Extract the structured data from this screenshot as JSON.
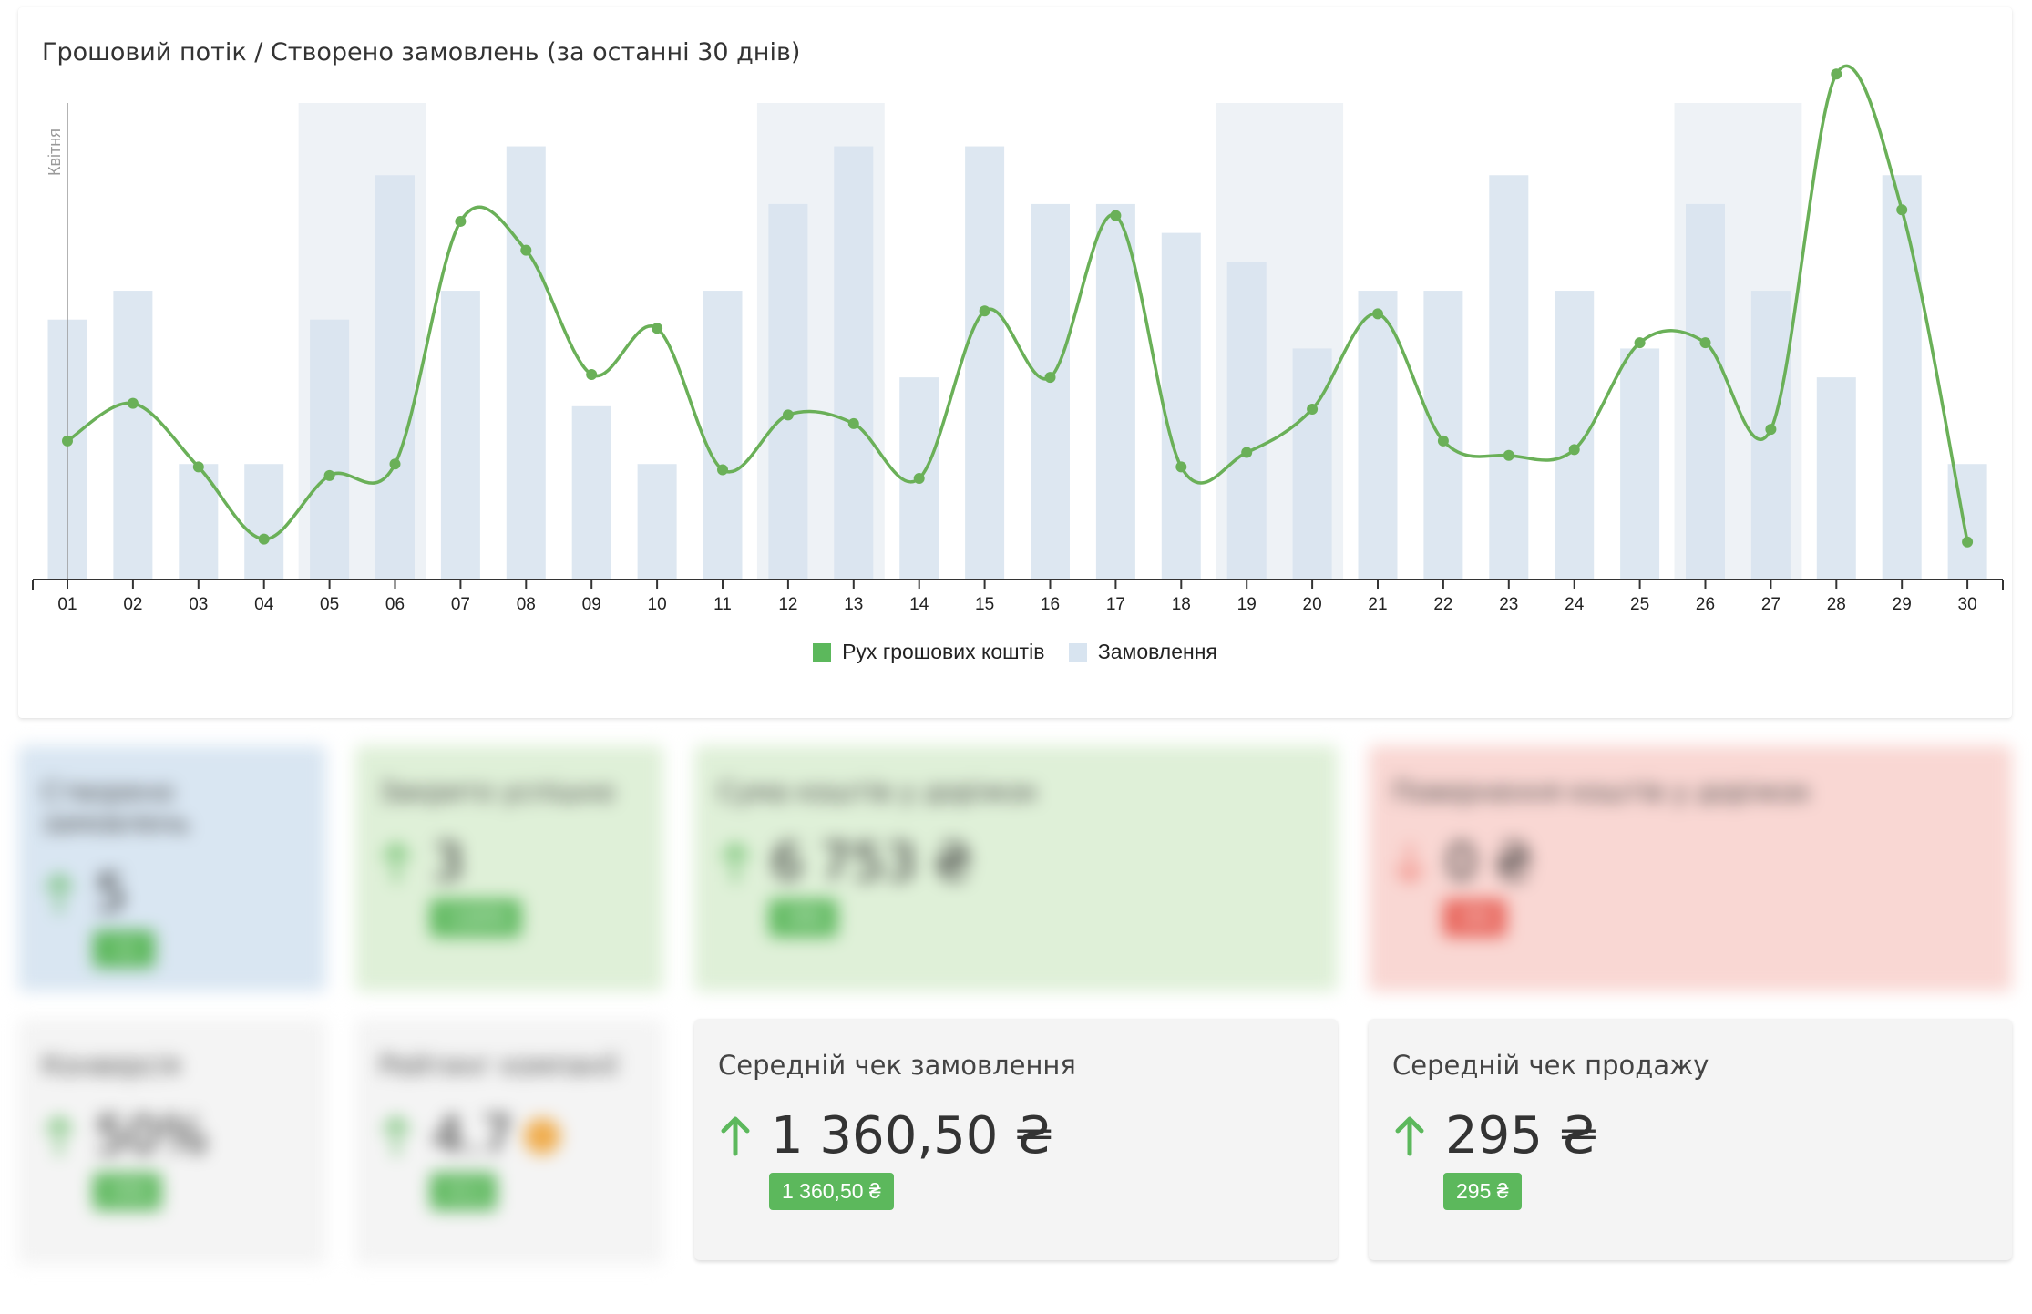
{
  "chart_panel": {
    "title": "Грошовий потік / Створено замовлень (за останні 30 днів)",
    "month_label": "Квітня",
    "legend": [
      {
        "label": "Рух грошових коштів",
        "color": "#5cb85c"
      },
      {
        "label": "Замовлення",
        "color": "#d8e4f0"
      }
    ]
  },
  "chart_data": {
    "type": "bar",
    "categories": [
      "01",
      "02",
      "03",
      "04",
      "05",
      "06",
      "07",
      "08",
      "09",
      "10",
      "11",
      "12",
      "13",
      "14",
      "15",
      "16",
      "17",
      "18",
      "19",
      "20",
      "21",
      "22",
      "23",
      "24",
      "25",
      "26",
      "27",
      "28",
      "29",
      "30"
    ],
    "series": [
      {
        "name": "Замовлення",
        "type": "bar",
        "values": [
          9,
          10,
          4,
          4,
          9,
          14,
          10,
          15,
          6,
          4,
          10,
          13,
          15,
          7,
          15,
          13,
          13,
          12,
          11,
          8,
          10,
          10,
          14,
          10,
          8,
          13,
          10,
          7,
          14,
          4
        ]
      },
      {
        "name": "Рух грошових коштів",
        "type": "line",
        "values": [
          4.8,
          6.1,
          3.9,
          1.4,
          3.6,
          4.0,
          12.4,
          11.4,
          7.1,
          8.7,
          3.8,
          5.7,
          5.4,
          3.5,
          9.3,
          7.0,
          12.6,
          3.9,
          4.4,
          5.9,
          9.2,
          4.8,
          4.3,
          4.5,
          8.2,
          8.2,
          5.2,
          17.5,
          12.8,
          1.3
        ]
      }
    ],
    "weekend_bands": [
      [
        "05",
        "06"
      ],
      [
        "12",
        "13"
      ],
      [
        "19",
        "20"
      ],
      [
        "26",
        "27"
      ]
    ],
    "xlabel": "",
    "ylabel": "",
    "ylim": [
      0,
      16.5
    ],
    "legend_position": "bottom-center"
  },
  "cards": [
    {
      "title": "Створено замовлень",
      "value": "5",
      "badge": "+1",
      "bg": "#d9e6f2",
      "arrow": "up",
      "arrow_color": "#5cb85c",
      "badge_color": "#5cb85c",
      "dot_color": ""
    },
    {
      "title": "Закрито успішно",
      "value": "3",
      "badge": "+100%",
      "bg": "#dff0d8",
      "arrow": "up",
      "arrow_color": "#5cb85c",
      "badge_color": "#5cb85c",
      "dot_color": ""
    },
    {
      "title": "Сума коштів у доріжок",
      "value": "6 753 ₴",
      "badge": "+9%",
      "bg": "#dff0d8",
      "arrow": "up",
      "arrow_color": "#5cb85c",
      "badge_color": "#5cb85c",
      "dot_color": ""
    },
    {
      "title": "Повернення коштів у доріжок",
      "value": "0 ₴",
      "badge": "-0%",
      "bg": "#f9d7d3",
      "arrow": "down",
      "arrow_color": "#f0847a",
      "badge_color": "#e8645a",
      "dot_color": ""
    },
    {
      "title": "Конверсія",
      "value": "50%",
      "badge": "+5%",
      "bg": "#f4f4f4",
      "arrow": "up",
      "arrow_color": "#5cb85c",
      "badge_color": "#5cb85c",
      "dot_color": ""
    },
    {
      "title": "Рейтинг компанії",
      "value": "4.7",
      "badge": "+0.1",
      "bg": "#f4f4f4",
      "arrow": "up",
      "arrow_color": "#5cb85c",
      "badge_color": "#5cb85c",
      "dot_color": "#f0ad4e"
    },
    {
      "title": "Середній чек замовлення",
      "value": "1 360,50 ₴",
      "badge": "1 360,50 ₴",
      "bg": "#f4f4f4",
      "arrow": "up",
      "arrow_color": "#5cb85c",
      "badge_color": "#5cb85c",
      "dot_color": ""
    },
    {
      "title": "Середній чек продажу",
      "value": "295 ₴",
      "badge": "295 ₴",
      "bg": "#f4f4f4",
      "arrow": "up",
      "arrow_color": "#5cb85c",
      "badge_color": "#5cb85c",
      "dot_color": ""
    }
  ]
}
